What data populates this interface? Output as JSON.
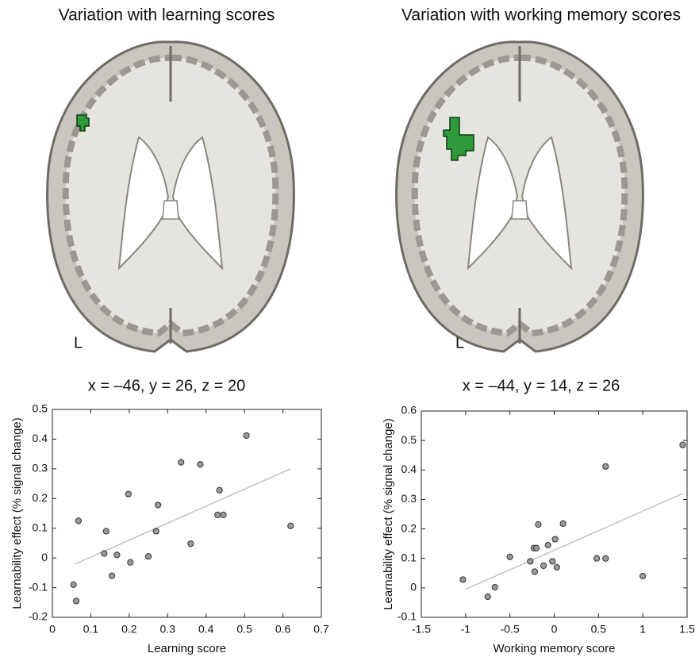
{
  "chart_data": [
    {
      "type": "scatter",
      "panel_title": "Variation with learning scores",
      "brain_label": "L",
      "coordinates": "x = –46, y = 26, z = 20",
      "x_label": "Learning score",
      "y_label": "Learnability effect (% signal change)",
      "x": [
        0.055,
        0.062,
        0.068,
        0.135,
        0.14,
        0.155,
        0.168,
        0.198,
        0.203,
        0.25,
        0.27,
        0.275,
        0.335,
        0.36,
        0.385,
        0.43,
        0.435,
        0.445,
        0.505,
        0.62
      ],
      "values": [
        -0.09,
        -0.145,
        0.125,
        0.015,
        0.09,
        -0.06,
        0.01,
        0.215,
        -0.015,
        0.005,
        0.09,
        0.178,
        0.322,
        0.048,
        0.315,
        0.145,
        0.228,
        0.145,
        0.412,
        0.108
      ],
      "point_color": "#9a9a9a",
      "fit_line": {
        "x": [
          0.06,
          0.62
        ],
        "y": [
          -0.02,
          0.3
        ],
        "color": "#bbbbbb"
      },
      "xlim": [
        0,
        0.7
      ],
      "xticks": [
        0,
        0.1,
        0.2,
        0.3,
        0.4,
        0.5,
        0.6,
        0.7
      ],
      "ylim": [
        -0.2,
        0.5
      ],
      "yticks": [
        -0.2,
        -0.1,
        0,
        0.1,
        0.2,
        0.3,
        0.4,
        0.5
      ]
    },
    {
      "type": "scatter",
      "panel_title": "Variation with working memory scores",
      "brain_label": "L",
      "coordinates": "x = –44, y = 14, z = 26",
      "x_label": "Working memory score",
      "y_label": "Learnability effect (% signal change)",
      "x": [
        -1.03,
        -0.75,
        -0.67,
        -0.5,
        -0.27,
        -0.23,
        -0.22,
        -0.2,
        -0.18,
        -0.12,
        -0.07,
        -0.02,
        0.01,
        0.03,
        0.1,
        0.48,
        0.58,
        0.58,
        1.0,
        1.45
      ],
      "values": [
        0.028,
        -0.03,
        0.002,
        0.105,
        0.09,
        0.135,
        0.055,
        0.135,
        0.215,
        0.075,
        0.145,
        0.09,
        0.165,
        0.07,
        0.218,
        0.1,
        0.1,
        0.412,
        0.04,
        0.485
      ],
      "point_color": "#9a9a9a",
      "fit_line": {
        "x": [
          -1,
          1.45
        ],
        "y": [
          -0.005,
          0.32
        ],
        "color": "#bbbbbb"
      },
      "xlim": [
        -1.5,
        1.5
      ],
      "xticks": [
        -1.5,
        -1,
        -0.5,
        0,
        0.5,
        1,
        1.5
      ],
      "ylim": [
        -0.1,
        0.6
      ],
      "yticks": [
        -0.1,
        0,
        0.1,
        0.2,
        0.3,
        0.4,
        0.5,
        0.6
      ]
    }
  ]
}
